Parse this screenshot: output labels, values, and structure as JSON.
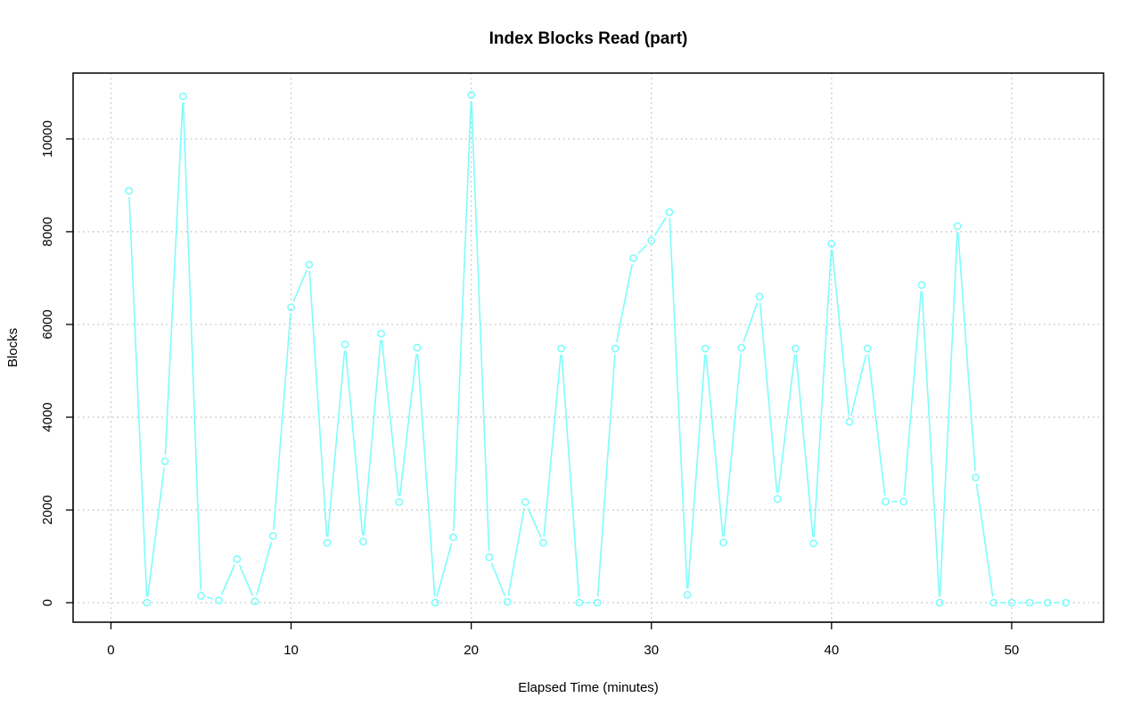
{
  "chart_data": {
    "type": "line",
    "title": "Index Blocks Read (part)",
    "xlabel": "Elapsed Time (minutes)",
    "ylabel": "Blocks",
    "xlim": [
      -2.1,
      55.1
    ],
    "ylim": [
      -420,
      11420
    ],
    "xticks": [
      0,
      10,
      20,
      30,
      40,
      50
    ],
    "yticks": [
      0,
      2000,
      4000,
      6000,
      8000,
      10000
    ],
    "grid": true,
    "series_color": "#7ffcfc",
    "series": [
      {
        "x": [
          1,
          2,
          3,
          4,
          5,
          6,
          7,
          8,
          9,
          10,
          11,
          12,
          13,
          14,
          15,
          16,
          17,
          18,
          19,
          20,
          21,
          22,
          23,
          24,
          25,
          26,
          27,
          28,
          29,
          30,
          31,
          32,
          33,
          34,
          35,
          36,
          37,
          38,
          39,
          40,
          41,
          42,
          43,
          44,
          45,
          46,
          47,
          48,
          49,
          50,
          51,
          52,
          53
        ],
        "values": [
          8880,
          0,
          3050,
          10920,
          150,
          50,
          940,
          30,
          1440,
          6370,
          7290,
          1290,
          5570,
          1320,
          5800,
          2170,
          5500,
          0,
          1410,
          10950,
          980,
          20,
          2170,
          1290,
          5480,
          0,
          0,
          5480,
          7430,
          7810,
          8420,
          170,
          5480,
          1300,
          5500,
          6600,
          2240,
          5480,
          1280,
          7740,
          3900,
          5480,
          2180,
          2180,
          6850,
          0,
          8120,
          2700,
          0,
          0,
          0,
          0,
          0
        ]
      }
    ]
  }
}
